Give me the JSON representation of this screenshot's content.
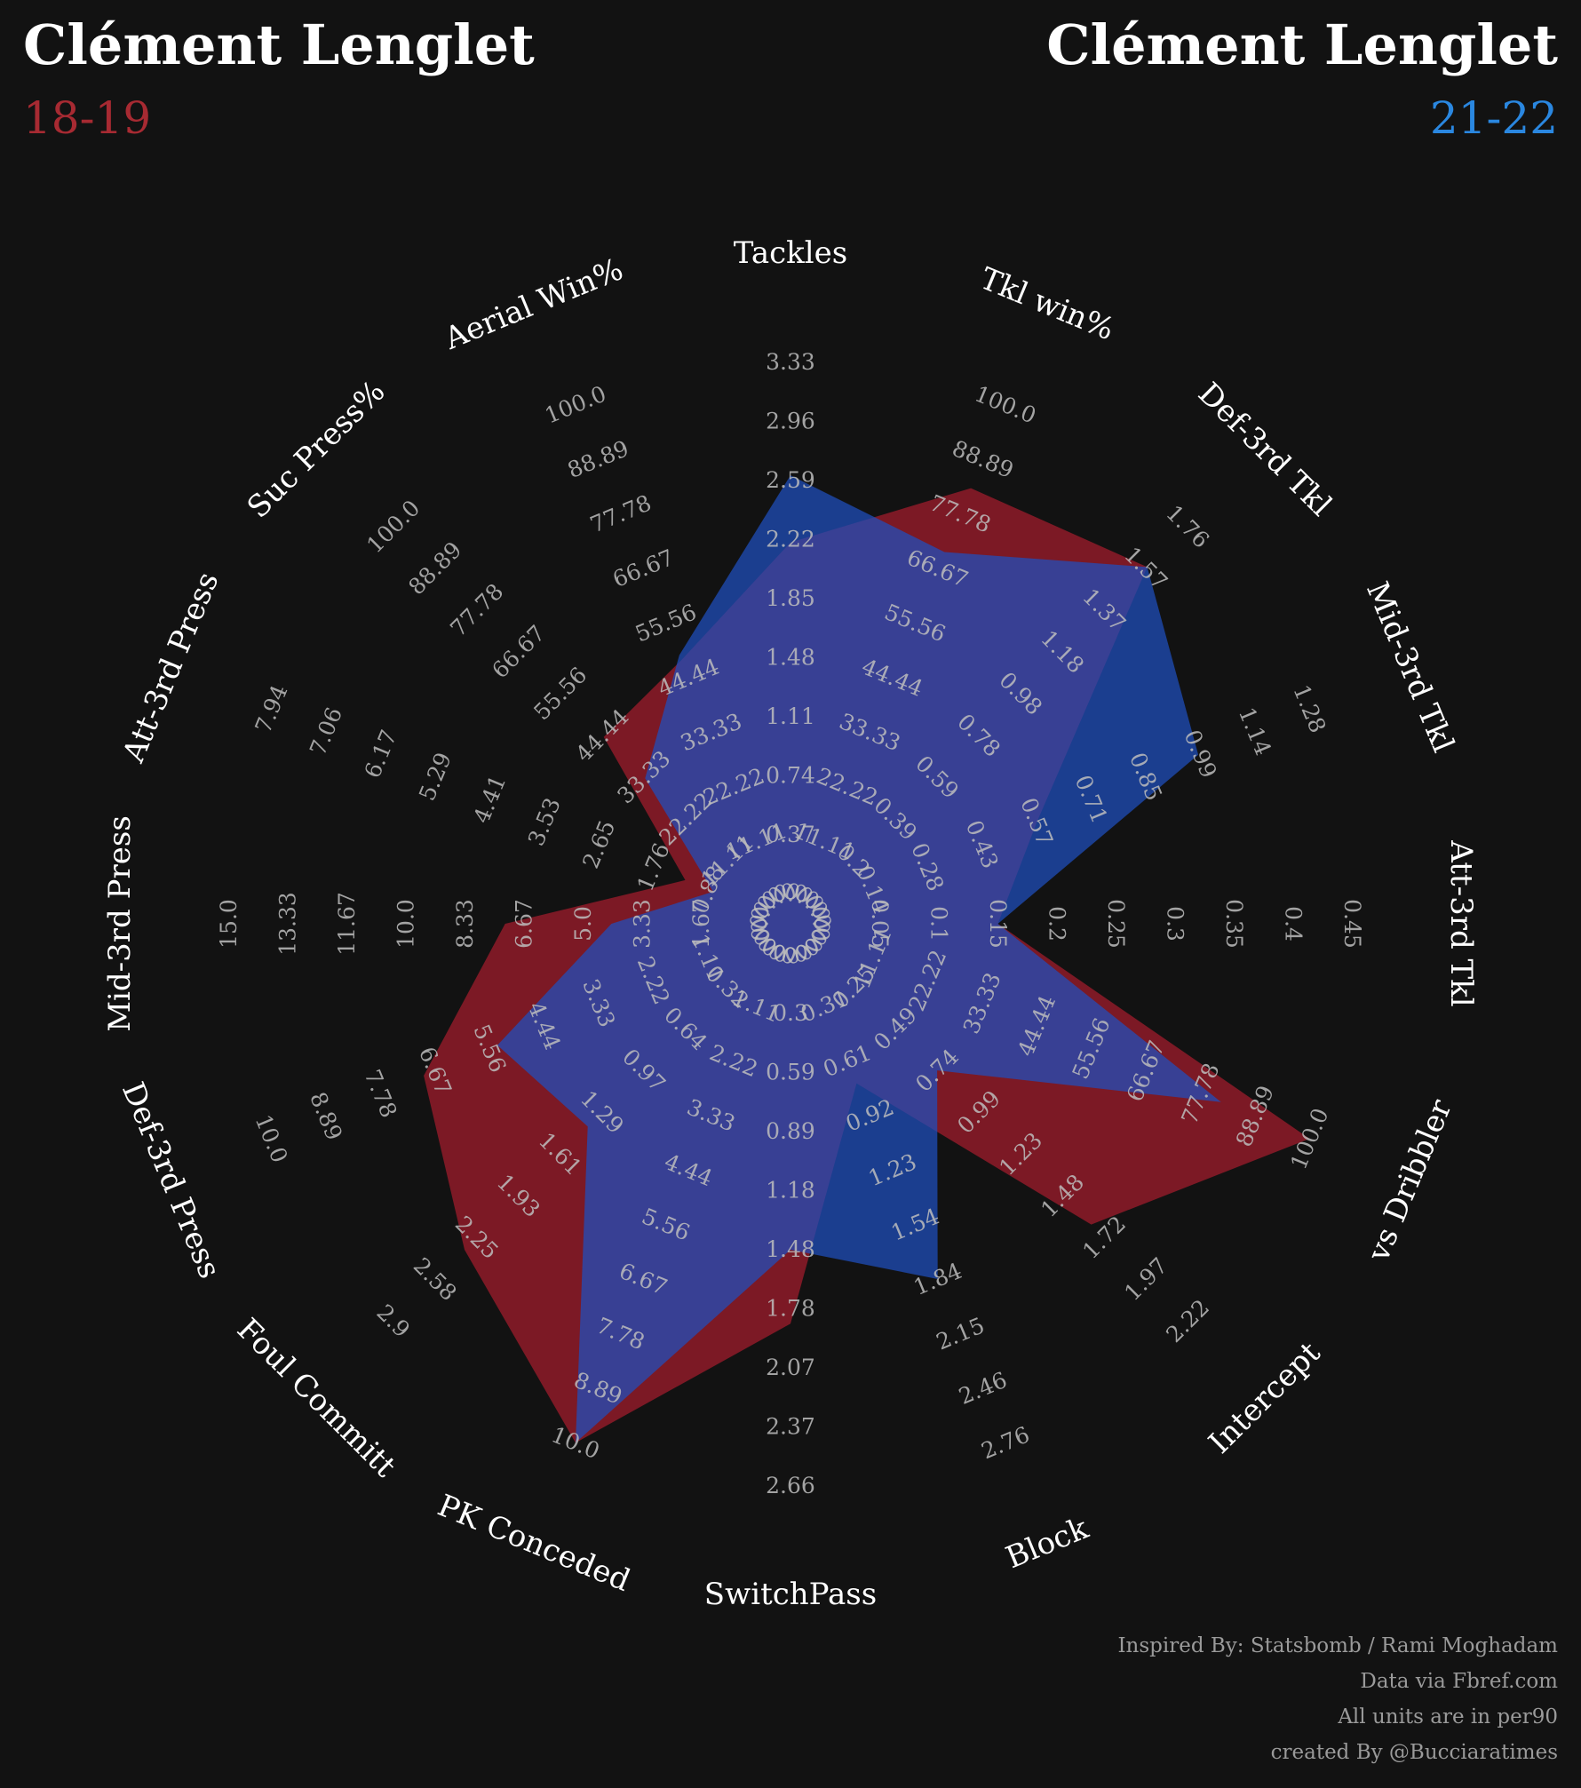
{
  "header": {
    "left_name": "Clément Lenglet",
    "left_season": "18-19",
    "right_name": "Clément Lenglet",
    "right_season": "21-22"
  },
  "credits": [
    "Inspired By: Statsbomb / Rami Moghadam",
    "Data via Fbref.com",
    "All units are in per90",
    "created By @Bucciaratimes"
  ],
  "colors": {
    "background": "#121212",
    "season_a": "#a72a32",
    "season_b": "#2a87e0",
    "fill_a": "#8b1a28",
    "fill_b": "#1f4fbf",
    "text": "#ffffff",
    "tick_text": "#bdbdbd",
    "credit_text": "#9a9a9a"
  },
  "chart_data": {
    "type": "radar",
    "metrics": [
      {
        "label": "Tackles",
        "ticks": [
          "0.0",
          "0.37",
          "0.74",
          "1.11",
          "1.48",
          "1.85",
          "2.22",
          "2.59",
          "2.96",
          "3.33"
        ]
      },
      {
        "label": "Tkl win%",
        "ticks": [
          "0.0",
          "11.11",
          "22.22",
          "33.33",
          "44.44",
          "55.56",
          "66.67",
          "77.78",
          "88.89",
          "100.0"
        ]
      },
      {
        "label": "Def-3rd Tkl",
        "ticks": [
          "0.0",
          "0.2",
          "0.39",
          "0.59",
          "0.78",
          "0.98",
          "1.18",
          "1.37",
          "1.57",
          "1.76"
        ]
      },
      {
        "label": "Mid-3rd Tkl",
        "ticks": [
          "0.0",
          "0.14",
          "0.28",
          "0.43",
          "0.57",
          "0.71",
          "0.85",
          "0.99",
          "1.14",
          "1.28"
        ]
      },
      {
        "label": "Att-3rd Tkl",
        "ticks": [
          "0.0",
          "0.05",
          "0.1",
          "0.15",
          "0.2",
          "0.25",
          "0.3",
          "0.35",
          "0.4",
          "0.45"
        ]
      },
      {
        "label": "vs Dribbler",
        "ticks": [
          "0.0",
          "11.11",
          "22.22",
          "33.33",
          "44.44",
          "55.56",
          "66.67",
          "77.78",
          "88.89",
          "100.0"
        ]
      },
      {
        "label": "Intercept",
        "ticks": [
          "0.0",
          "0.25",
          "0.49",
          "0.74",
          "0.99",
          "1.23",
          "1.48",
          "1.72",
          "1.97",
          "2.22"
        ]
      },
      {
        "label": "Block",
        "ticks": [
          "0.0",
          "0.31",
          "0.61",
          "0.92",
          "1.23",
          "1.54",
          "1.84",
          "2.15",
          "2.46",
          "2.76"
        ]
      },
      {
        "label": "SwitchPass",
        "ticks": [
          "0.0",
          "0.3",
          "0.59",
          "0.89",
          "1.18",
          "1.48",
          "1.78",
          "2.07",
          "2.37",
          "2.66"
        ]
      },
      {
        "label": "PK Conceded",
        "ticks": [
          "0.0",
          "1.11",
          "2.22",
          "3.33",
          "4.44",
          "5.56",
          "6.67",
          "7.78",
          "8.89",
          "10.0"
        ]
      },
      {
        "label": "Foul Committ",
        "ticks": [
          "0.0",
          "0.32",
          "0.64",
          "0.97",
          "1.29",
          "1.61",
          "1.93",
          "2.25",
          "2.58",
          "2.9"
        ]
      },
      {
        "label": "Def-3rd Press",
        "ticks": [
          "0.0",
          "1.11",
          "2.22",
          "3.33",
          "4.44",
          "5.56",
          "6.67",
          "7.78",
          "8.89",
          "10.0"
        ]
      },
      {
        "label": "Mid-3rd Press",
        "ticks": [
          "0.0",
          "1.67",
          "3.33",
          "5.0",
          "6.67",
          "8.33",
          "10.0",
          "11.67",
          "13.33",
          "15.0"
        ]
      },
      {
        "label": "Att-3rd Press",
        "ticks": [
          "0.0",
          "0.88",
          "1.76",
          "2.65",
          "3.53",
          "4.41",
          "5.29",
          "6.17",
          "7.06",
          "7.94"
        ]
      },
      {
        "label": "Suc Press%",
        "ticks": [
          "0.0",
          "11.11",
          "22.22",
          "33.33",
          "44.44",
          "55.56",
          "66.67",
          "77.78",
          "88.89",
          "100.0"
        ]
      },
      {
        "label": "Aerial Win%",
        "ticks": [
          "0.0",
          "11.11",
          "22.22",
          "33.33",
          "44.44",
          "55.56",
          "66.67",
          "77.78",
          "88.89",
          "100.0"
        ]
      }
    ],
    "series": [
      {
        "name": "18-19",
        "values": [
          2.2,
          83,
          1.57,
          0.57,
          0.15,
          100,
          1.65,
          0.74,
          1.85,
          10.0,
          2.35,
          6.9,
          7.2,
          1.25,
          44,
          48
        ]
      },
      {
        "name": "21-22",
        "values": [
          2.62,
          70,
          1.57,
          0.99,
          0.15,
          82,
          0.74,
          1.84,
          1.48,
          10.0,
          1.4,
          5.4,
          4.2,
          0.8,
          33,
          49
        ]
      }
    ]
  }
}
